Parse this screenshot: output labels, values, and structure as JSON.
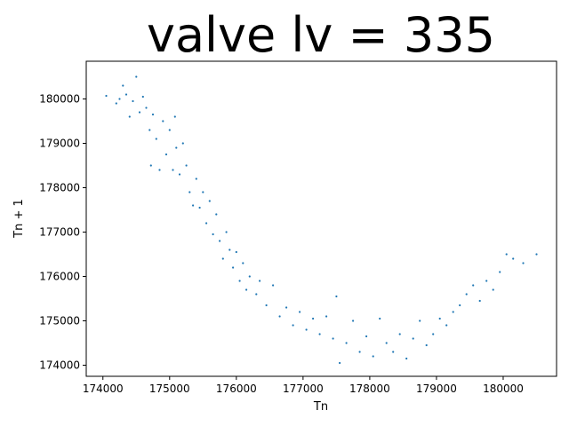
{
  "chart_data": {
    "type": "scatter",
    "title": "valve lv = 335",
    "xlabel": "Tn",
    "ylabel": "Tn + 1",
    "xlim": [
      173750,
      180800
    ],
    "ylim": [
      173750,
      180850
    ],
    "x_ticks": [
      {
        "value": 174000,
        "label": "174000"
      },
      {
        "value": 175000,
        "label": "175000"
      },
      {
        "value": 176000,
        "label": "176000"
      },
      {
        "value": 177000,
        "label": "177000"
      },
      {
        "value": 178000,
        "label": "178000"
      },
      {
        "value": 179000,
        "label": "179000"
      },
      {
        "value": 180000,
        "label": "180000"
      }
    ],
    "y_ticks": [
      {
        "value": 174000,
        "label": "174000"
      },
      {
        "value": 175000,
        "label": "175000"
      },
      {
        "value": 176000,
        "label": "176000"
      },
      {
        "value": 177000,
        "label": "177000"
      },
      {
        "value": 178000,
        "label": "178000"
      },
      {
        "value": 179000,
        "label": "179000"
      },
      {
        "value": 180000,
        "label": "180000"
      }
    ],
    "grid": false,
    "marker_color": "#1f77b4",
    "series": [
      {
        "points": [
          [
            174050,
            180070
          ],
          [
            174200,
            179900
          ],
          [
            174250,
            180000
          ],
          [
            174300,
            180300
          ],
          [
            174350,
            180100
          ],
          [
            174400,
            179600
          ],
          [
            174450,
            179950
          ],
          [
            174500,
            180500
          ],
          [
            174550,
            179700
          ],
          [
            174600,
            180050
          ],
          [
            174650,
            179800
          ],
          [
            174700,
            179300
          ],
          [
            174720,
            178500
          ],
          [
            174750,
            179650
          ],
          [
            174800,
            179100
          ],
          [
            174850,
            178400
          ],
          [
            174900,
            179500
          ],
          [
            174950,
            178750
          ],
          [
            175000,
            179300
          ],
          [
            175050,
            178400
          ],
          [
            175080,
            179600
          ],
          [
            175100,
            178900
          ],
          [
            175150,
            178300
          ],
          [
            175200,
            179000
          ],
          [
            175250,
            178500
          ],
          [
            175300,
            177900
          ],
          [
            175350,
            177600
          ],
          [
            175400,
            178200
          ],
          [
            175450,
            177550
          ],
          [
            175500,
            177900
          ],
          [
            175550,
            177200
          ],
          [
            175600,
            177700
          ],
          [
            175650,
            176950
          ],
          [
            175700,
            177400
          ],
          [
            175750,
            176800
          ],
          [
            175800,
            176400
          ],
          [
            175850,
            177000
          ],
          [
            175900,
            176600
          ],
          [
            175950,
            176200
          ],
          [
            176000,
            176550
          ],
          [
            176050,
            175900
          ],
          [
            176100,
            176300
          ],
          [
            176150,
            175700
          ],
          [
            176200,
            176000
          ],
          [
            176300,
            175600
          ],
          [
            176350,
            175900
          ],
          [
            176450,
            175350
          ],
          [
            176550,
            175800
          ],
          [
            176650,
            175100
          ],
          [
            176750,
            175300
          ],
          [
            176850,
            174900
          ],
          [
            176950,
            175200
          ],
          [
            177050,
            174800
          ],
          [
            177150,
            175050
          ],
          [
            177250,
            174700
          ],
          [
            177350,
            175100
          ],
          [
            177450,
            174600
          ],
          [
            177500,
            175550
          ],
          [
            177550,
            174050
          ],
          [
            177650,
            174500
          ],
          [
            177750,
            175000
          ],
          [
            177850,
            174300
          ],
          [
            177950,
            174650
          ],
          [
            178050,
            174200
          ],
          [
            178150,
            175050
          ],
          [
            178250,
            174500
          ],
          [
            178350,
            174300
          ],
          [
            178450,
            174700
          ],
          [
            178550,
            174150
          ],
          [
            178650,
            174600
          ],
          [
            178750,
            175000
          ],
          [
            178850,
            174450
          ],
          [
            178950,
            174700
          ],
          [
            179050,
            175050
          ],
          [
            179150,
            174900
          ],
          [
            179250,
            175200
          ],
          [
            179350,
            175350
          ],
          [
            179450,
            175600
          ],
          [
            179550,
            175800
          ],
          [
            179650,
            175450
          ],
          [
            179750,
            175900
          ],
          [
            179850,
            175700
          ],
          [
            179950,
            176100
          ],
          [
            180050,
            176500
          ],
          [
            180150,
            176400
          ],
          [
            180300,
            176300
          ],
          [
            180500,
            176500
          ]
        ]
      }
    ]
  }
}
